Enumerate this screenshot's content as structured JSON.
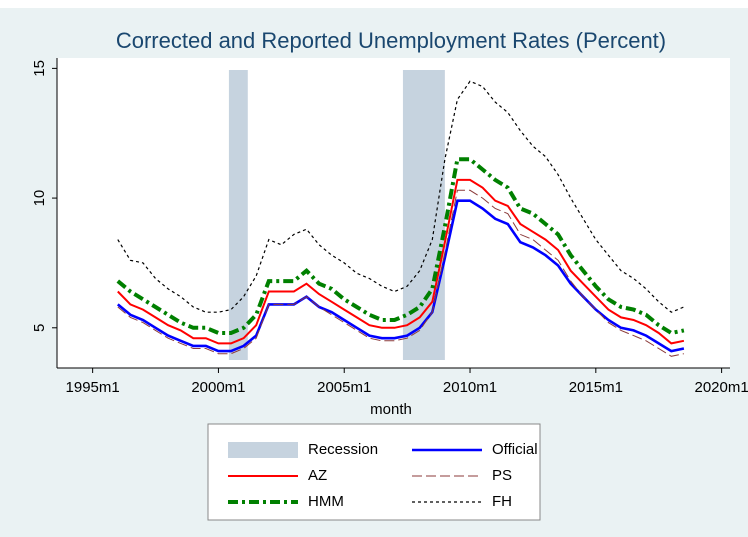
{
  "chart_data": {
    "type": "line",
    "title": "Corrected and Reported Unemployment Rates (Percent)",
    "x_label": "month",
    "x": [
      432,
      438,
      444,
      450,
      456,
      462,
      468,
      474,
      480,
      486,
      492,
      498,
      504,
      510,
      516,
      522,
      528,
      534,
      540,
      546,
      552,
      558,
      564,
      570,
      576,
      582,
      588,
      594,
      600,
      606,
      612,
      618,
      624,
      630,
      636,
      642,
      648,
      654,
      660,
      666,
      672,
      678,
      684,
      690,
      696,
      702
    ],
    "recession": {
      "name": "Recession",
      "color": "#c6d3df",
      "spans": [
        [
          485,
          494
        ],
        [
          568,
          588
        ]
      ]
    },
    "series": [
      {
        "name": "Official",
        "color": "#0000ff",
        "style": "solid-thick",
        "values": [
          5.9,
          5.5,
          5.3,
          5.0,
          4.7,
          4.5,
          4.3,
          4.3,
          4.1,
          4.1,
          4.3,
          4.7,
          5.9,
          5.9,
          5.9,
          6.2,
          5.8,
          5.6,
          5.3,
          5.0,
          4.7,
          4.6,
          4.6,
          4.7,
          5.0,
          5.6,
          7.7,
          9.9,
          9.9,
          9.6,
          9.2,
          9.0,
          8.3,
          8.1,
          7.8,
          7.4,
          6.7,
          6.2,
          5.7,
          5.3,
          5.0,
          4.9,
          4.7,
          4.4,
          4.1,
          4.2
        ]
      },
      {
        "name": "AZ",
        "color": "#ff0000",
        "style": "solid",
        "values": [
          6.4,
          5.9,
          5.7,
          5.4,
          5.1,
          4.9,
          4.6,
          4.6,
          4.4,
          4.4,
          4.6,
          5.1,
          6.4,
          6.4,
          6.4,
          6.7,
          6.3,
          6.0,
          5.7,
          5.4,
          5.1,
          5.0,
          5.0,
          5.1,
          5.4,
          6.0,
          8.3,
          10.7,
          10.7,
          10.4,
          9.9,
          9.7,
          9.0,
          8.7,
          8.4,
          8.0,
          7.2,
          6.7,
          6.2,
          5.7,
          5.4,
          5.3,
          5.1,
          4.8,
          4.4,
          4.5
        ]
      },
      {
        "name": "PS",
        "color": "#8b3a3a",
        "style": "longdash",
        "values": [
          5.8,
          5.4,
          5.2,
          4.9,
          4.6,
          4.4,
          4.2,
          4.2,
          4.0,
          4.0,
          4.2,
          4.6,
          5.9,
          5.9,
          5.9,
          6.2,
          5.8,
          5.5,
          5.2,
          4.9,
          4.6,
          4.5,
          4.5,
          4.6,
          4.9,
          5.6,
          7.9,
          10.3,
          10.3,
          10.0,
          9.6,
          9.4,
          8.6,
          8.4,
          8.0,
          7.6,
          6.8,
          6.2,
          5.7,
          5.2,
          4.9,
          4.7,
          4.5,
          4.2,
          3.9,
          4.0
        ]
      },
      {
        "name": "HMM",
        "color": "#008000",
        "style": "dashdot",
        "values": [
          6.8,
          6.4,
          6.1,
          5.8,
          5.5,
          5.2,
          5.0,
          5.0,
          4.8,
          4.8,
          5.0,
          5.5,
          6.8,
          6.8,
          6.8,
          7.2,
          6.7,
          6.5,
          6.1,
          5.8,
          5.5,
          5.3,
          5.3,
          5.5,
          5.8,
          6.5,
          8.9,
          11.5,
          11.5,
          11.1,
          10.7,
          10.4,
          9.6,
          9.4,
          9.0,
          8.6,
          7.8,
          7.2,
          6.6,
          6.1,
          5.8,
          5.7,
          5.5,
          5.1,
          4.8,
          4.9
        ]
      },
      {
        "name": "FH",
        "color": "#000000",
        "style": "shortdash",
        "values": [
          8.4,
          7.6,
          7.5,
          6.9,
          6.5,
          6.2,
          5.8,
          5.6,
          5.6,
          5.7,
          6.2,
          7.0,
          8.4,
          8.2,
          8.6,
          8.8,
          8.2,
          7.8,
          7.5,
          7.1,
          6.9,
          6.6,
          6.4,
          6.6,
          7.2,
          8.4,
          11.5,
          13.8,
          14.5,
          14.3,
          13.7,
          13.3,
          12.6,
          12.0,
          11.6,
          10.9,
          10.0,
          9.2,
          8.4,
          7.8,
          7.2,
          6.9,
          6.5,
          6.0,
          5.6,
          5.8
        ]
      }
    ],
    "xlim": [
      403,
      724
    ],
    "xticks": [
      {
        "value": 420,
        "label": "1995m1"
      },
      {
        "value": 480,
        "label": "2000m1"
      },
      {
        "value": 540,
        "label": "2005m1"
      },
      {
        "value": 600,
        "label": "2010m1"
      },
      {
        "value": 660,
        "label": "2015m1"
      },
      {
        "value": 720,
        "label": "2020m1"
      }
    ],
    "ylim": [
      3.45,
      15.4
    ],
    "yticks": [
      5,
      10,
      15
    ],
    "legend_position": "bottom"
  }
}
